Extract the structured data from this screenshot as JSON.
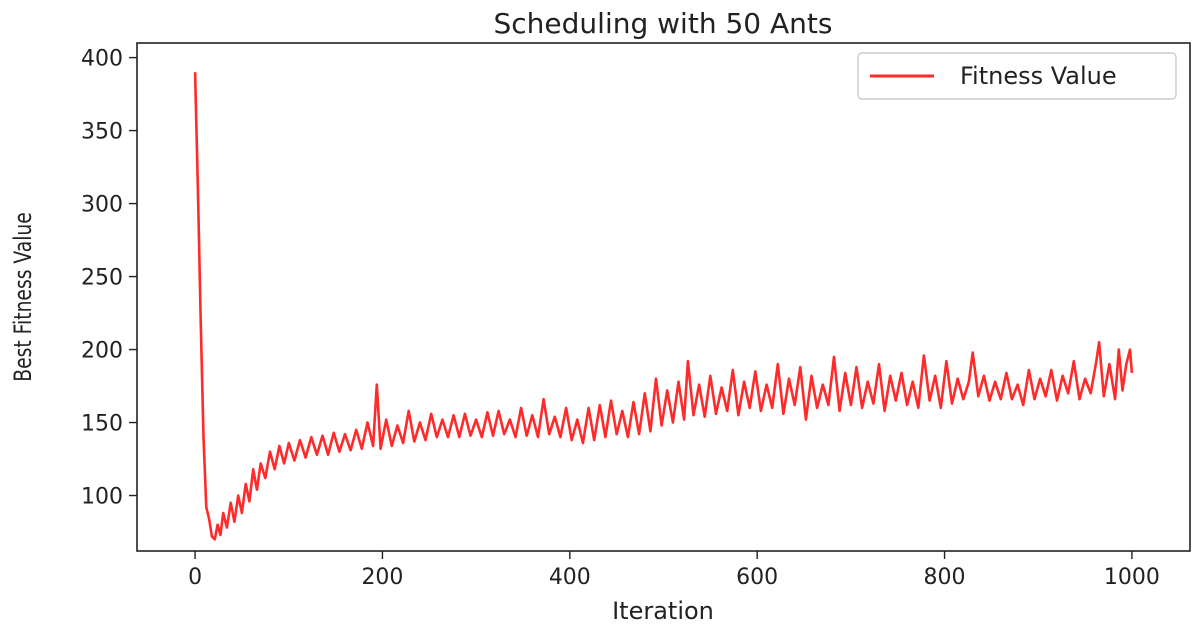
{
  "chart_data": {
    "type": "line",
    "title": "Scheduling with 50 Ants",
    "xlabel": "Iteration",
    "ylabel": "Best Fitness Value",
    "xlim": [
      -62,
      1062
    ],
    "ylim": [
      62,
      410
    ],
    "xticks": [
      0,
      200,
      400,
      600,
      800,
      1000
    ],
    "yticks": [
      100,
      150,
      200,
      250,
      300,
      350,
      400
    ],
    "grid": false,
    "legend": {
      "position": "top-right"
    },
    "series": [
      {
        "name": "Fitness Value",
        "color": "#ff2a2a",
        "points": [
          [
            0,
            390
          ],
          [
            3,
            310
          ],
          [
            6,
            220
          ],
          [
            9,
            140
          ],
          [
            12,
            92
          ],
          [
            15,
            84
          ],
          [
            18,
            72
          ],
          [
            21,
            70
          ],
          [
            24,
            80
          ],
          [
            27,
            73
          ],
          [
            30,
            88
          ],
          [
            34,
            78
          ],
          [
            38,
            95
          ],
          [
            42,
            82
          ],
          [
            46,
            100
          ],
          [
            50,
            88
          ],
          [
            54,
            108
          ],
          [
            58,
            96
          ],
          [
            62,
            118
          ],
          [
            66,
            104
          ],
          [
            70,
            122
          ],
          [
            75,
            112
          ],
          [
            80,
            130
          ],
          [
            85,
            118
          ],
          [
            90,
            134
          ],
          [
            95,
            122
          ],
          [
            100,
            136
          ],
          [
            106,
            124
          ],
          [
            112,
            138
          ],
          [
            118,
            126
          ],
          [
            124,
            140
          ],
          [
            130,
            128
          ],
          [
            136,
            141
          ],
          [
            142,
            128
          ],
          [
            148,
            143
          ],
          [
            154,
            130
          ],
          [
            160,
            142
          ],
          [
            166,
            131
          ],
          [
            172,
            145
          ],
          [
            178,
            132
          ],
          [
            184,
            150
          ],
          [
            190,
            134
          ],
          [
            194,
            176
          ],
          [
            198,
            132
          ],
          [
            204,
            152
          ],
          [
            210,
            134
          ],
          [
            216,
            148
          ],
          [
            222,
            136
          ],
          [
            228,
            158
          ],
          [
            234,
            137
          ],
          [
            240,
            150
          ],
          [
            246,
            138
          ],
          [
            252,
            156
          ],
          [
            258,
            140
          ],
          [
            264,
            152
          ],
          [
            270,
            140
          ],
          [
            276,
            155
          ],
          [
            282,
            140
          ],
          [
            288,
            156
          ],
          [
            294,
            141
          ],
          [
            300,
            152
          ],
          [
            306,
            140
          ],
          [
            312,
            157
          ],
          [
            318,
            141
          ],
          [
            324,
            158
          ],
          [
            330,
            142
          ],
          [
            336,
            152
          ],
          [
            342,
            140
          ],
          [
            348,
            160
          ],
          [
            354,
            141
          ],
          [
            360,
            155
          ],
          [
            366,
            140
          ],
          [
            372,
            166
          ],
          [
            378,
            142
          ],
          [
            384,
            154
          ],
          [
            390,
            140
          ],
          [
            396,
            160
          ],
          [
            402,
            138
          ],
          [
            408,
            152
          ],
          [
            414,
            136
          ],
          [
            420,
            160
          ],
          [
            426,
            138
          ],
          [
            432,
            162
          ],
          [
            438,
            140
          ],
          [
            444,
            165
          ],
          [
            450,
            142
          ],
          [
            456,
            158
          ],
          [
            462,
            140
          ],
          [
            468,
            164
          ],
          [
            474,
            142
          ],
          [
            480,
            170
          ],
          [
            486,
            144
          ],
          [
            492,
            180
          ],
          [
            498,
            148
          ],
          [
            504,
            172
          ],
          [
            510,
            150
          ],
          [
            516,
            178
          ],
          [
            522,
            152
          ],
          [
            526,
            192
          ],
          [
            532,
            155
          ],
          [
            538,
            176
          ],
          [
            544,
            154
          ],
          [
            550,
            182
          ],
          [
            556,
            156
          ],
          [
            562,
            174
          ],
          [
            568,
            158
          ],
          [
            574,
            186
          ],
          [
            580,
            155
          ],
          [
            586,
            178
          ],
          [
            592,
            160
          ],
          [
            598,
            185
          ],
          [
            604,
            158
          ],
          [
            610,
            176
          ],
          [
            616,
            160
          ],
          [
            622,
            190
          ],
          [
            628,
            156
          ],
          [
            634,
            180
          ],
          [
            640,
            162
          ],
          [
            646,
            188
          ],
          [
            652,
            152
          ],
          [
            658,
            182
          ],
          [
            664,
            160
          ],
          [
            670,
            176
          ],
          [
            676,
            162
          ],
          [
            682,
            195
          ],
          [
            688,
            158
          ],
          [
            694,
            184
          ],
          [
            700,
            162
          ],
          [
            706,
            188
          ],
          [
            712,
            160
          ],
          [
            718,
            178
          ],
          [
            724,
            163
          ],
          [
            730,
            190
          ],
          [
            736,
            158
          ],
          [
            742,
            182
          ],
          [
            748,
            165
          ],
          [
            754,
            184
          ],
          [
            760,
            162
          ],
          [
            766,
            178
          ],
          [
            772,
            160
          ],
          [
            778,
            196
          ],
          [
            784,
            165
          ],
          [
            790,
            182
          ],
          [
            796,
            160
          ],
          [
            802,
            192
          ],
          [
            808,
            163
          ],
          [
            814,
            180
          ],
          [
            820,
            166
          ],
          [
            826,
            178
          ],
          [
            830,
            198
          ],
          [
            836,
            168
          ],
          [
            842,
            182
          ],
          [
            848,
            165
          ],
          [
            854,
            178
          ],
          [
            860,
            166
          ],
          [
            866,
            184
          ],
          [
            872,
            166
          ],
          [
            878,
            176
          ],
          [
            884,
            162
          ],
          [
            890,
            186
          ],
          [
            896,
            166
          ],
          [
            902,
            180
          ],
          [
            908,
            168
          ],
          [
            914,
            186
          ],
          [
            920,
            165
          ],
          [
            926,
            182
          ],
          [
            932,
            170
          ],
          [
            938,
            192
          ],
          [
            944,
            166
          ],
          [
            950,
            180
          ],
          [
            956,
            170
          ],
          [
            962,
            192
          ],
          [
            965,
            205
          ],
          [
            970,
            168
          ],
          [
            976,
            190
          ],
          [
            982,
            166
          ],
          [
            986,
            200
          ],
          [
            990,
            172
          ],
          [
            994,
            190
          ],
          [
            998,
            200
          ],
          [
            1000,
            184
          ]
        ]
      }
    ]
  }
}
